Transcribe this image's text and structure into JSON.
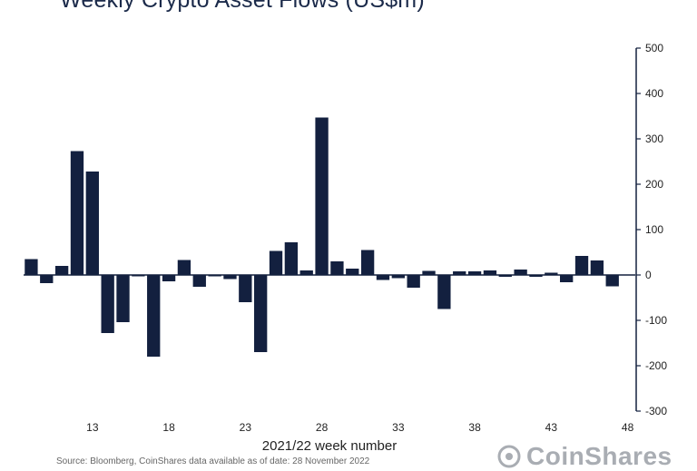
{
  "chart_data": {
    "type": "bar",
    "title": "Weekly Crypto Asset Flows (US$m)",
    "xlabel": "2021/22 week number",
    "ylabel": "",
    "ylim": [
      -300,
      500
    ],
    "yticks": [
      500,
      400,
      300,
      200,
      100,
      0,
      -100,
      -200,
      -300
    ],
    "xtick_labels": [
      "13",
      "18",
      "23",
      "28",
      "33",
      "38",
      "43",
      "48"
    ],
    "categories": [
      "9",
      "10",
      "11",
      "12",
      "13",
      "14",
      "15",
      "16",
      "17",
      "18",
      "19",
      "20",
      "21",
      "22",
      "23",
      "24",
      "25",
      "26",
      "27",
      "28",
      "29",
      "30",
      "31",
      "32",
      "33",
      "34",
      "35",
      "36",
      "37",
      "38",
      "39",
      "40",
      "41",
      "42",
      "43",
      "44",
      "45",
      "46",
      "47",
      "48"
    ],
    "values": [
      35,
      -18,
      20,
      273,
      228,
      -128,
      -104,
      -3,
      -180,
      -14,
      33,
      -26,
      -3,
      -9,
      -60,
      -170,
      53,
      72,
      10,
      347,
      30,
      14,
      55,
      -11,
      -7,
      -28,
      9,
      -75,
      8,
      8,
      10,
      -4,
      12,
      -4,
      5,
      -16,
      42,
      32,
      -25,
      null
    ],
    "bar_color": "#13203f",
    "axis_color": "#13203f",
    "y_axis_position": "right",
    "grid": false
  },
  "footer": {
    "source_note": "Source: Bloomberg, CoinShares data available as of date: 28 November 2022",
    "brand_name": "CoinShares"
  }
}
